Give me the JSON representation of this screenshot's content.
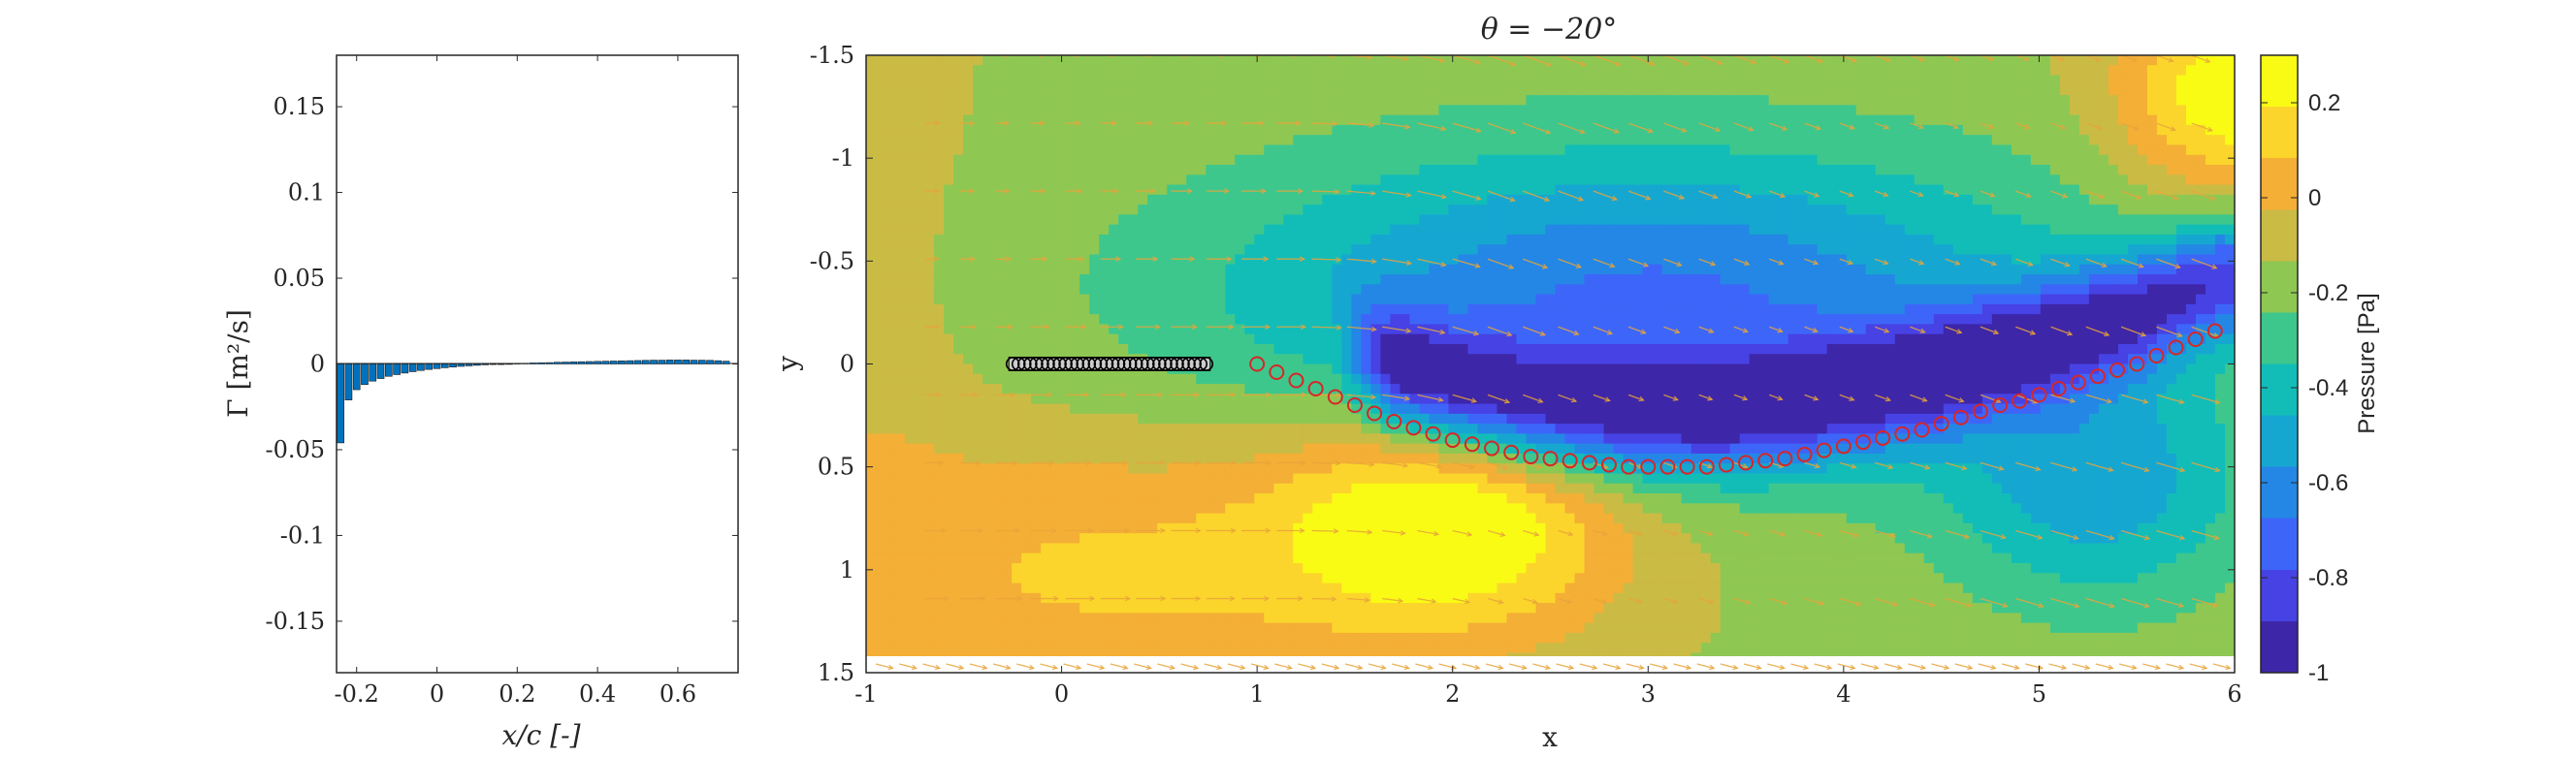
{
  "chart_data": [
    {
      "type": "bar",
      "xlabel": "x/c [-]",
      "ylabel": "Γ [m²/s]",
      "xlim": [
        -0.25,
        0.75
      ],
      "ylim": [
        -0.18,
        0.18
      ],
      "xticks": [
        "-0.2",
        "0",
        "0.2",
        "0.4",
        "0.6"
      ],
      "yticks": [
        "0.15",
        "0.1",
        "0.05",
        "0",
        "-0.05",
        "-0.1",
        "-0.15"
      ],
      "bar_color": "#0072BD",
      "x": [
        -0.24,
        -0.22,
        -0.2,
        -0.18,
        -0.16,
        -0.14,
        -0.12,
        -0.1,
        -0.08,
        -0.06,
        -0.04,
        -0.02,
        0.0,
        0.02,
        0.04,
        0.06,
        0.08,
        0.1,
        0.12,
        0.14,
        0.16,
        0.18,
        0.2,
        0.22,
        0.24,
        0.26,
        0.28,
        0.3,
        0.32,
        0.34,
        0.36,
        0.38,
        0.4,
        0.42,
        0.44,
        0.46,
        0.48,
        0.5,
        0.52,
        0.54,
        0.56,
        0.58,
        0.6,
        0.62,
        0.64,
        0.66,
        0.68,
        0.7,
        0.72
      ],
      "values": [
        -0.046,
        -0.021,
        -0.015,
        -0.012,
        -0.01,
        -0.0085,
        -0.0072,
        -0.0062,
        -0.0053,
        -0.0045,
        -0.0038,
        -0.0032,
        -0.0027,
        -0.0022,
        -0.0018,
        -0.0014,
        -0.0011,
        -0.0008,
        -0.0005,
        -0.0003,
        -0.0001,
        0.0001,
        0.0003,
        0.0004,
        0.0006,
        0.0007,
        0.0008,
        0.001,
        0.0011,
        0.0012,
        0.0013,
        0.0014,
        0.0015,
        0.0016,
        0.0017,
        0.0018,
        0.0019,
        0.002,
        0.0021,
        0.0022,
        0.0022,
        0.0023,
        0.0023,
        0.0023,
        0.0022,
        0.0022,
        0.0021,
        0.0019,
        0.0016
      ]
    },
    {
      "type": "heatmap",
      "title": "θ = −20°",
      "xlabel": "x",
      "ylabel": "y",
      "xlim": [
        -1,
        6
      ],
      "ylim": [
        -1.5,
        1.5
      ],
      "y_axis_reversed": true,
      "xticks": [
        "-1",
        "0",
        "1",
        "2",
        "3",
        "4",
        "5",
        "6"
      ],
      "yticks": [
        "-1.5",
        "-1",
        "-0.5",
        "0",
        "0.5",
        "1",
        "1.5"
      ],
      "colorbar": {
        "label": "Pressure [Pa]",
        "range": [
          -1,
          0.3
        ],
        "ticks": [
          "0.2",
          "0",
          "-0.2",
          "-0.4",
          "-0.6",
          "-0.8",
          "-1"
        ],
        "colormap": [
          "#3E26A8",
          "#4742E4",
          "#3D66F9",
          "#2487E5",
          "#16A7D1",
          "#12BDB8",
          "#3EC78C",
          "#8FC753",
          "#CABB45",
          "#F4AF36",
          "#FBD52C",
          "#F9FB15"
        ]
      },
      "plate_markers": {
        "x": [
          -0.25,
          -0.22,
          -0.19,
          -0.16,
          -0.13,
          -0.1,
          -0.07,
          -0.04,
          -0.01,
          0.02,
          0.05,
          0.08,
          0.11,
          0.14,
          0.17,
          0.2,
          0.23,
          0.26,
          0.29,
          0.32,
          0.35,
          0.38,
          0.41,
          0.44,
          0.47,
          0.5,
          0.53,
          0.56,
          0.59,
          0.62,
          0.65,
          0.68,
          0.71,
          0.74
        ],
        "y": 0,
        "color": "#000000"
      },
      "wake_markers": {
        "color": "#D62728",
        "x": [
          1.0,
          1.1,
          1.2,
          1.3,
          1.4,
          1.5,
          1.6,
          1.7,
          1.8,
          1.9,
          2.0,
          2.1,
          2.2,
          2.3,
          2.4,
          2.5,
          2.6,
          2.7,
          2.8,
          2.9,
          3.0,
          3.1,
          3.2,
          3.3,
          3.4,
          3.5,
          3.6,
          3.7,
          3.8,
          3.9,
          4.0,
          4.1,
          4.2,
          4.3,
          4.4,
          4.5,
          4.6,
          4.7,
          4.8,
          4.9,
          5.0,
          5.1,
          5.2,
          5.3,
          5.4,
          5.5,
          5.6,
          5.7,
          5.8,
          5.9
        ],
        "y": [
          0.0,
          0.04,
          0.08,
          0.12,
          0.16,
          0.2,
          0.24,
          0.28,
          0.31,
          0.34,
          0.37,
          0.39,
          0.41,
          0.43,
          0.45,
          0.46,
          0.47,
          0.48,
          0.49,
          0.5,
          0.5,
          0.5,
          0.5,
          0.5,
          0.49,
          0.48,
          0.47,
          0.46,
          0.44,
          0.42,
          0.4,
          0.38,
          0.36,
          0.34,
          0.32,
          0.29,
          0.26,
          0.23,
          0.2,
          0.18,
          0.15,
          0.12,
          0.09,
          0.06,
          0.03,
          0.0,
          -0.04,
          -0.08,
          -0.12,
          -0.16
        ]
      },
      "quiver_color": "#E8A53A"
    }
  ]
}
